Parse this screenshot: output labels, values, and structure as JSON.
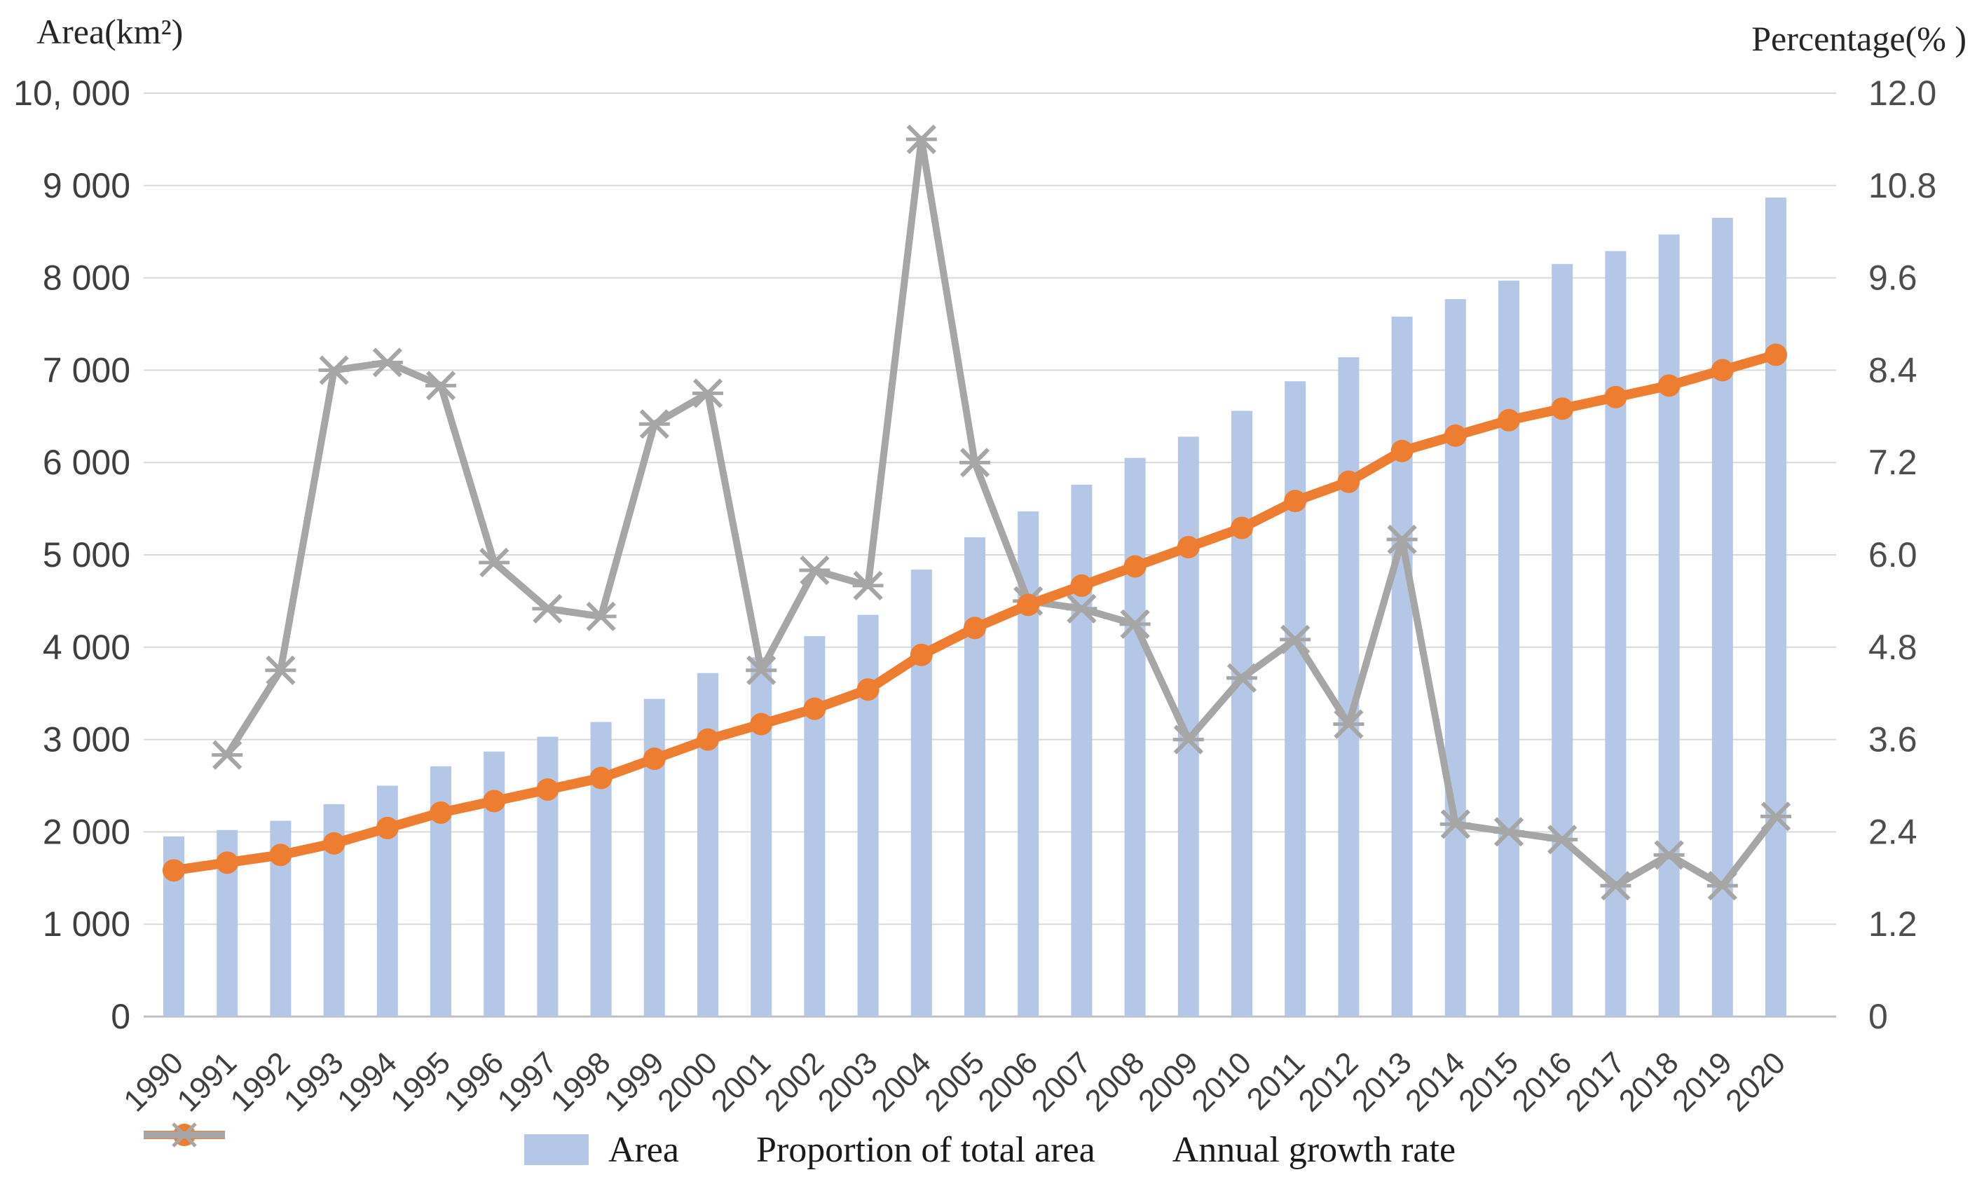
{
  "chart_data": {
    "type": "combo",
    "title": "",
    "categories": [
      "1990",
      "1991",
      "1992",
      "1993",
      "1994",
      "1995",
      "1996",
      "1997",
      "1998",
      "1999",
      "2000",
      "2001",
      "2002",
      "2003",
      "2004",
      "2005",
      "2006",
      "2007",
      "2008",
      "2009",
      "2010",
      "2011",
      "2012",
      "2013",
      "2014",
      "2015",
      "2016",
      "2017",
      "2018",
      "2019",
      "2020"
    ],
    "series": [
      {
        "name": "Area",
        "chart_type": "bar",
        "axis": "left",
        "color": "#B4C7E7",
        "values": [
          1950,
          2020,
          2120,
          2300,
          2500,
          2710,
          2870,
          3030,
          3190,
          3440,
          3720,
          3890,
          4120,
          4350,
          4840,
          5190,
          5470,
          5760,
          6050,
          6280,
          6560,
          6880,
          7140,
          7580,
          7770,
          7970,
          8150,
          8290,
          8470,
          8650,
          8870
        ]
      },
      {
        "name": "Proportion of total area",
        "chart_type": "line",
        "axis": "right",
        "color": "#ED7D31",
        "marker": "circle",
        "values": [
          1.9,
          2.0,
          2.1,
          2.25,
          2.45,
          2.65,
          2.8,
          2.95,
          3.1,
          3.35,
          3.6,
          3.8,
          4.0,
          4.25,
          4.7,
          5.05,
          5.35,
          5.6,
          5.85,
          6.1,
          6.35,
          6.7,
          6.95,
          7.35,
          7.55,
          7.75,
          7.9,
          8.05,
          8.2,
          8.4,
          8.6
        ]
      },
      {
        "name": "Annual growth rate",
        "chart_type": "line",
        "axis": "right",
        "color": "#A6A6A6",
        "marker": "x-asterisk",
        "values": [
          null,
          3.4,
          4.5,
          8.4,
          8.5,
          8.2,
          5.9,
          5.3,
          5.2,
          7.7,
          8.1,
          4.5,
          5.8,
          5.6,
          11.4,
          7.2,
          5.4,
          5.3,
          5.1,
          3.6,
          4.4,
          4.9,
          3.8,
          6.2,
          2.5,
          2.4,
          2.3,
          1.7,
          2.1,
          1.7,
          2.6
        ]
      }
    ],
    "left_axis": {
      "title": "Area(km²)",
      "range": [
        0,
        10000
      ],
      "tick_values": [
        10000,
        9000,
        8000,
        7000,
        6000,
        5000,
        4000,
        3000,
        2000,
        1000,
        0
      ],
      "tick_labels": [
        "10, 000",
        "9 000",
        "8 000",
        "7 000",
        "6 000",
        "5 000",
        "4 000",
        "3 000",
        "2 000",
        "1 000",
        "0"
      ]
    },
    "right_axis": {
      "title": "Percentage(% )",
      "range": [
        0,
        12
      ],
      "tick_values": [
        12,
        10.8,
        9.6,
        8.4,
        7.2,
        6.0,
        4.8,
        3.6,
        2.4,
        1.2,
        0
      ],
      "tick_labels": [
        "12.0",
        "10.8",
        "9.6",
        "8.4",
        "7.2",
        "6.0",
        "4.8",
        "3.6",
        "2.4",
        "1.2",
        "0"
      ]
    },
    "legend_position": "bottom",
    "grid": true
  },
  "colors": {
    "background": "#ffffff",
    "gridline": "#D9D9D9",
    "baseline": "#BFBFBF",
    "bar_fill": "#B4C7E7",
    "proportion_line": "#ED7D31",
    "growth_line": "#A6A6A6"
  }
}
